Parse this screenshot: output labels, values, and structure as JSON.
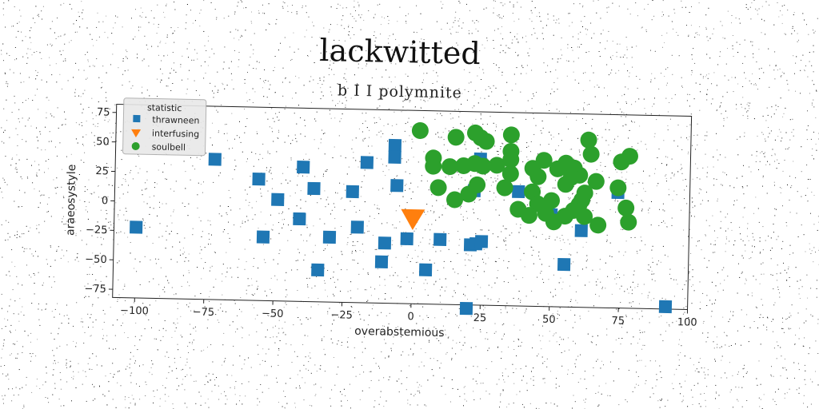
{
  "chart_data": {
    "type": "scatter",
    "title": "lackwitted",
    "subtitle": "b I I polymnite",
    "xlabel": "overabstemious",
    "ylabel": "araeosystyle",
    "xlim": [
      -108,
      100
    ],
    "ylim": [
      -82,
      82
    ],
    "xticks": [
      -100,
      -75,
      -50,
      -25,
      0,
      25,
      50,
      75,
      100
    ],
    "yticks": [
      -75,
      -50,
      -25,
      0,
      25,
      50,
      75
    ],
    "grid": false,
    "legend": {
      "title": "statistic",
      "position": "top-left"
    },
    "colors": {
      "thrawneen": "#1f77b4",
      "interfusing": "#ff7f0e",
      "soulbell": "#2ca02c"
    },
    "series": [
      {
        "name": "thrawneen",
        "marker": "square",
        "points": [
          [
            -100,
            -22
          ],
          [
            -72,
            37
          ],
          [
            -56,
            21
          ],
          [
            -49,
            4
          ],
          [
            -40,
            32
          ],
          [
            -36,
            14
          ],
          [
            -41,
            -12
          ],
          [
            -54,
            -28
          ],
          [
            -34,
            -55
          ],
          [
            -30,
            -27
          ],
          [
            -20,
            -18
          ],
          [
            -22,
            12
          ],
          [
            -17,
            37
          ],
          [
            -10,
            -31
          ],
          [
            -11,
            -47
          ],
          [
            -7,
            52
          ],
          [
            -7,
            42
          ],
          [
            -6,
            18
          ],
          [
            -2,
            -27
          ],
          [
            5,
            -53
          ],
          [
            10,
            -27
          ],
          [
            20,
            -85
          ],
          [
            21,
            -31
          ],
          [
            23,
            -30
          ],
          [
            25,
            -28
          ],
          [
            22,
            15
          ],
          [
            24,
            42
          ],
          [
            38,
            15
          ],
          [
            50,
            -4
          ],
          [
            55,
            -46
          ],
          [
            61,
            -17
          ],
          [
            74,
            16
          ],
          [
            92,
            -80
          ]
        ]
      },
      {
        "name": "interfusing",
        "marker": "triangle-down",
        "points": [
          [
            0,
            -10
          ]
        ]
      },
      {
        "name": "soulbell",
        "marker": "circle",
        "points": [
          [
            2,
            65
          ],
          [
            7,
            42
          ],
          [
            15,
            60
          ],
          [
            22,
            64
          ],
          [
            24,
            60
          ],
          [
            26,
            57
          ],
          [
            9,
            17
          ],
          [
            7,
            35
          ],
          [
            13,
            35
          ],
          [
            18,
            36
          ],
          [
            22,
            38
          ],
          [
            25,
            36
          ],
          [
            30,
            37
          ],
          [
            15,
            7
          ],
          [
            20,
            12
          ],
          [
            23,
            20
          ],
          [
            35,
            63
          ],
          [
            35,
            49
          ],
          [
            35,
            42
          ],
          [
            35,
            30
          ],
          [
            33,
            18
          ],
          [
            43,
            35
          ],
          [
            47,
            42
          ],
          [
            52,
            35
          ],
          [
            55,
            40
          ],
          [
            58,
            36
          ],
          [
            60,
            30
          ],
          [
            57,
            28
          ],
          [
            55,
            22
          ],
          [
            45,
            28
          ],
          [
            43,
            15
          ],
          [
            45,
            5
          ],
          [
            48,
            -3
          ],
          [
            51,
            -10
          ],
          [
            55,
            -5
          ],
          [
            60,
            5
          ],
          [
            62,
            15
          ],
          [
            66,
            25
          ],
          [
            63,
            60
          ],
          [
            64,
            48
          ],
          [
            75,
            42
          ],
          [
            78,
            47
          ],
          [
            74,
            20
          ],
          [
            77,
            3
          ],
          [
            78,
            -9
          ],
          [
            62,
            -5
          ],
          [
            67,
            -12
          ],
          [
            61,
            9
          ],
          [
            42,
            -5
          ],
          [
            38,
            0
          ],
          [
            58,
            0
          ],
          [
            50,
            8
          ]
        ]
      }
    ]
  }
}
